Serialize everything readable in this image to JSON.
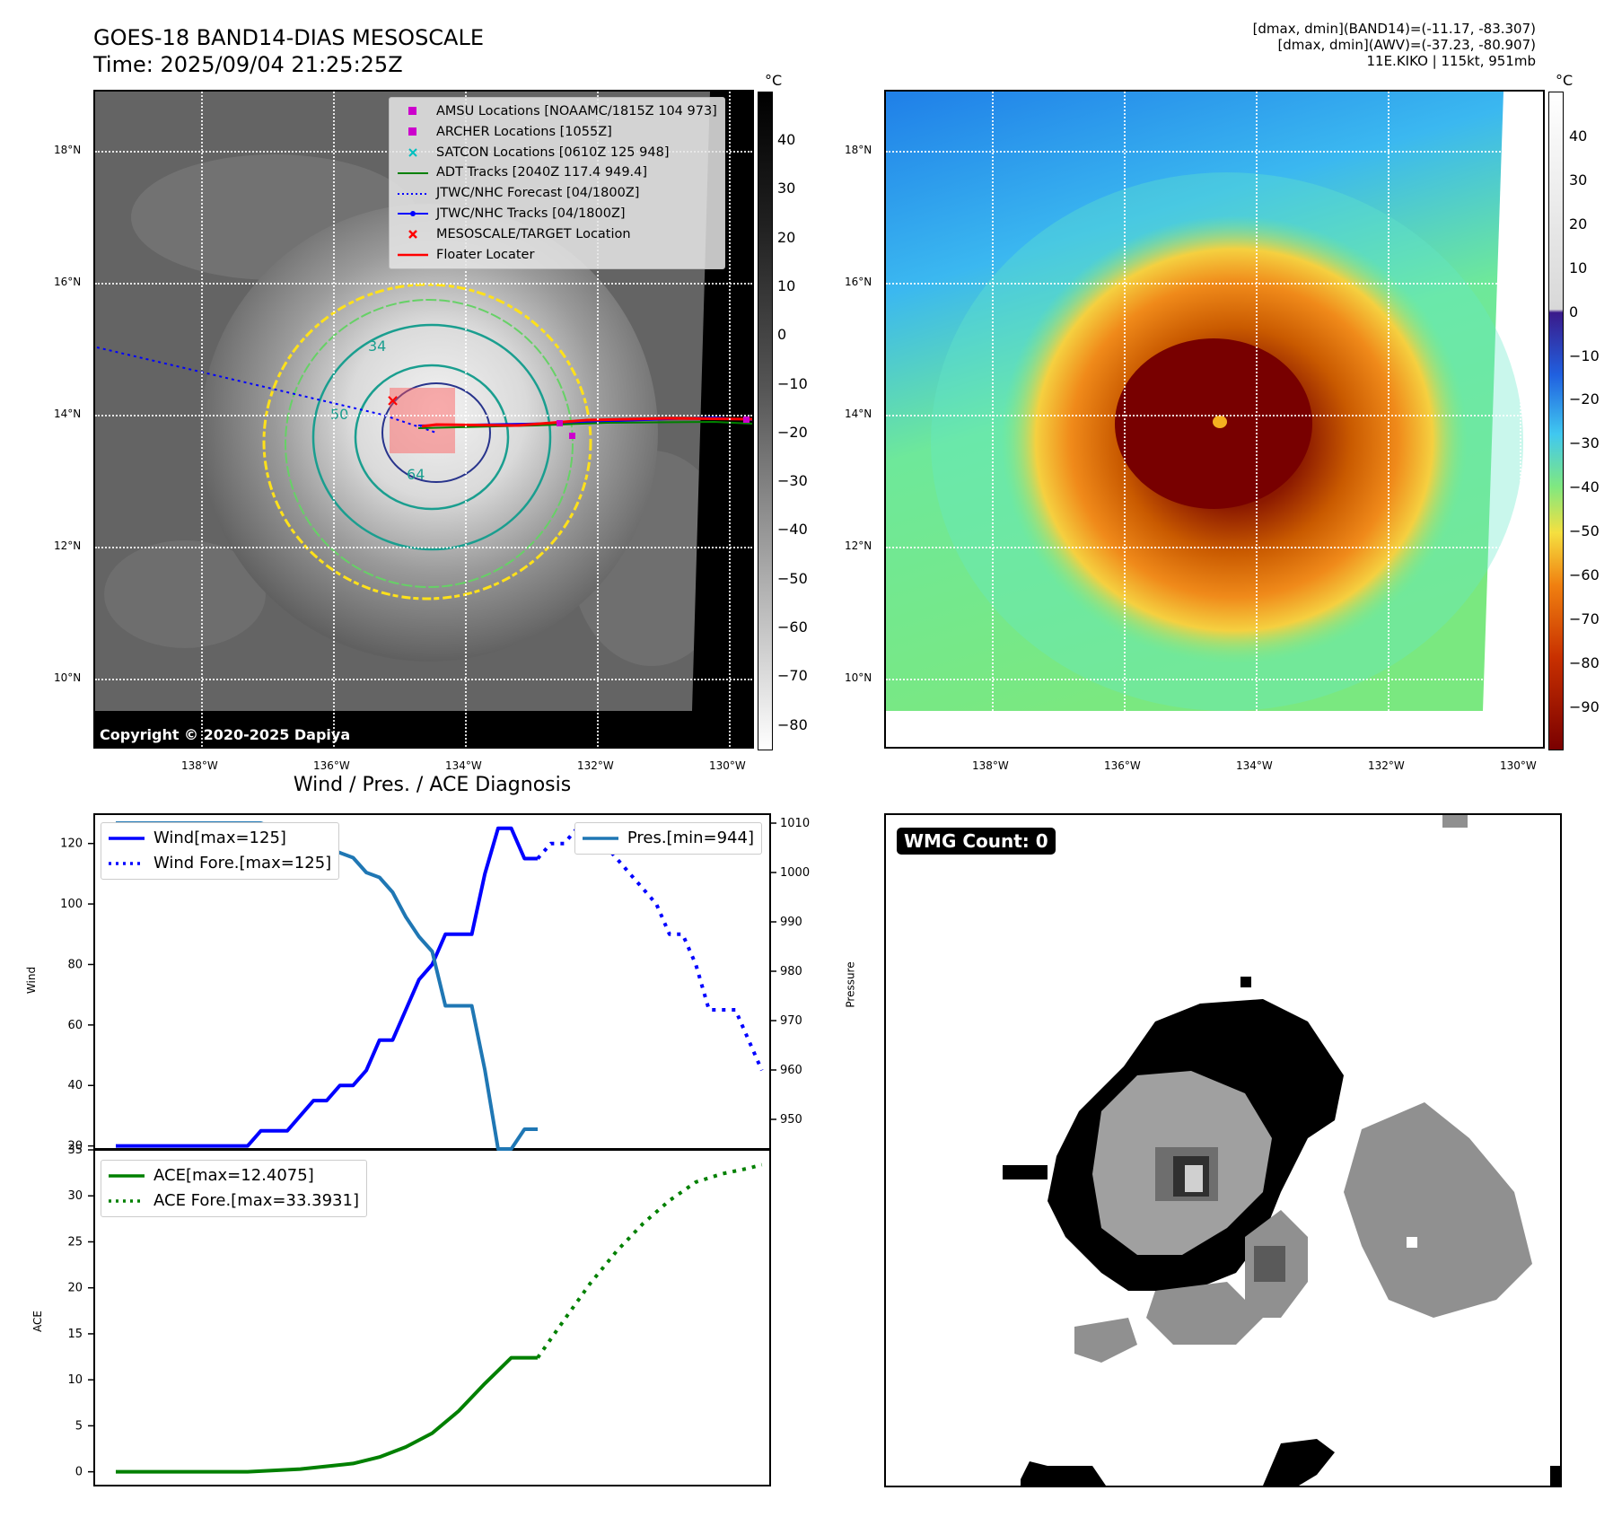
{
  "header": {
    "title_line1": "GOES-18 BAND14-DIAS MESOSCALE",
    "title_line2": "Time: 2025/09/04 21:25:25Z",
    "info_line1": "[dmax, dmin](BAND14)=(-11.17, -83.307)",
    "info_line2": "[dmax, dmin](AWV)=(-37.23, -80.907)",
    "info_line3": "11E.KIKO | 115kt, 951mb"
  },
  "map": {
    "lon_ticks": [
      "138°W",
      "136°W",
      "134°W",
      "132°W",
      "130°W"
    ],
    "lat_ticks": [
      "18°N",
      "16°N",
      "14°N",
      "12°N",
      "10°N"
    ],
    "copyright": "Copyright © 2020-2025 Dapiya",
    "contour_labels": [
      "34",
      "50",
      "64"
    ],
    "colors": {
      "yellow": "#ffe11a",
      "green": "#66d166",
      "teal": "#1a9e8f",
      "navy": "#28348c"
    }
  },
  "legend": {
    "items": [
      {
        "label": "AMSU Locations [NOAAMC/1815Z 104 973]",
        "icon": "magenta-square",
        "color": "#cc00cc"
      },
      {
        "label": "ARCHER Locations [1055Z]",
        "icon": "magenta-square",
        "color": "#cc00cc"
      },
      {
        "label": "SATCON Locations [0610Z 125 948]",
        "icon": "cyan-x",
        "color": "#00bfbf"
      },
      {
        "label": "ADT Tracks [2040Z 117.4 949.4]",
        "icon": "green-line",
        "color": "#008000"
      },
      {
        "label": "JTWC/NHC Forecast [04/1800Z]",
        "icon": "blue-dotted-line",
        "color": "#0000ff"
      },
      {
        "label": "JTWC/NHC Tracks [04/1800Z]",
        "icon": "blue-dot-line",
        "color": "#0000ff"
      },
      {
        "label": "MESOSCALE/TARGET Location",
        "icon": "red-x",
        "color": "#ff0000"
      },
      {
        "label": "Floater Locater",
        "icon": "red-line",
        "color": "#ff0000"
      }
    ]
  },
  "colorbar_left": {
    "unit": "°C",
    "ticks": [
      "40",
      "30",
      "20",
      "10",
      "0",
      "−10",
      "−20",
      "−30",
      "−40",
      "−50",
      "−60",
      "−70",
      "−80"
    ]
  },
  "colorbar_right": {
    "unit": "°C",
    "ticks": [
      "40",
      "30",
      "20",
      "10",
      "0",
      "−10",
      "−20",
      "−30",
      "−40",
      "−50",
      "−60",
      "−70",
      "−80",
      "−90"
    ]
  },
  "diagnosis": {
    "title": "Wind / Pres. / ACE Diagnosis",
    "wind_axis_label": "Wind",
    "pressure_axis_label": "Pressure",
    "ace_axis_label": "ACE",
    "wind_legend": [
      "Wind[max=125]",
      "Wind Fore.[max=125]"
    ],
    "pres_legend": "Pres.[min=944]",
    "ace_legend": [
      "ACE[max=12.4075]",
      "ACE Fore.[max=33.3931]"
    ],
    "wind_ticks": [
      "120",
      "100",
      "80",
      "60",
      "40",
      "20"
    ],
    "pres_ticks": [
      "1010",
      "1000",
      "990",
      "980",
      "970",
      "960",
      "950"
    ],
    "ace_ticks": [
      "35",
      "30",
      "25",
      "20",
      "15",
      "10",
      "5",
      "0"
    ]
  },
  "wmg": {
    "label": "WMG Count: 0"
  },
  "chart_data": [
    {
      "type": "line",
      "title": "Wind / Pres. / ACE Diagnosis",
      "ylabel": "Wind",
      "ylim": [
        19,
        130
      ],
      "x": [
        0,
        1,
        2,
        3,
        4,
        5,
        6,
        7,
        8,
        9,
        10,
        11,
        12,
        13,
        14,
        15,
        16,
        17,
        18,
        19,
        20,
        21,
        22,
        23,
        24,
        25,
        26,
        27,
        28,
        29,
        30,
        31,
        32,
        33,
        34,
        35,
        36,
        37,
        38,
        39,
        40,
        41,
        42,
        43,
        44,
        45,
        46,
        47,
        48,
        49
      ],
      "series": [
        {
          "name": "Wind[max=125]",
          "x": [
            0,
            10,
            11,
            12,
            13,
            14,
            15,
            16,
            17,
            18,
            19,
            20,
            21,
            22,
            23,
            24,
            25,
            26,
            27,
            28,
            29,
            30,
            31,
            32
          ],
          "values": [
            20,
            20,
            25,
            25,
            25,
            30,
            35,
            35,
            40,
            40,
            45,
            55,
            55,
            65,
            75,
            80,
            90,
            90,
            90,
            110,
            125,
            125,
            115,
            115
          ]
        },
        {
          "name": "Wind Fore.[max=125]",
          "x": [
            32,
            33,
            34,
            35,
            36,
            37,
            38,
            39,
            40,
            41,
            42,
            43,
            44,
            45,
            46,
            47,
            48,
            49
          ],
          "values": [
            115,
            120,
            120,
            125,
            120,
            120,
            115,
            110,
            105,
            100,
            90,
            90,
            80,
            65,
            65,
            65,
            55,
            45
          ]
        }
      ]
    },
    {
      "type": "line",
      "ylabel": "Pressure",
      "ylim": [
        944,
        1012
      ],
      "series": [
        {
          "name": "Pres.[min=944]",
          "x": [
            0,
            10,
            11,
            12,
            13,
            14,
            15,
            16,
            17,
            18,
            19,
            20,
            21,
            22,
            23,
            24,
            25,
            26,
            27,
            28,
            29,
            30,
            31,
            32
          ],
          "values": [
            1010,
            1010,
            1010,
            1009,
            1009,
            1008,
            1006,
            1005,
            1004,
            1003,
            1000,
            999,
            996,
            991,
            987,
            984,
            973,
            973,
            973,
            960,
            944,
            944,
            948,
            948
          ]
        }
      ]
    },
    {
      "type": "line",
      "ylabel": "ACE",
      "ylim": [
        -1.5,
        35
      ],
      "series": [
        {
          "name": "ACE[max=12.4075]",
          "x": [
            0,
            5,
            10,
            14,
            18,
            20,
            22,
            24,
            26,
            28,
            30,
            32
          ],
          "values": [
            0,
            0,
            0,
            0.3,
            0.9,
            1.6,
            2.7,
            4.2,
            6.6,
            9.6,
            12.4,
            12.4
          ]
        },
        {
          "name": "ACE Fore.[max=33.3931]",
          "x": [
            32,
            34,
            36,
            38,
            40,
            42,
            44,
            46,
            48,
            49
          ],
          "values": [
            12.4,
            16.5,
            20.5,
            24.0,
            27.0,
            29.5,
            31.5,
            32.4,
            33.0,
            33.39
          ]
        }
      ]
    }
  ]
}
